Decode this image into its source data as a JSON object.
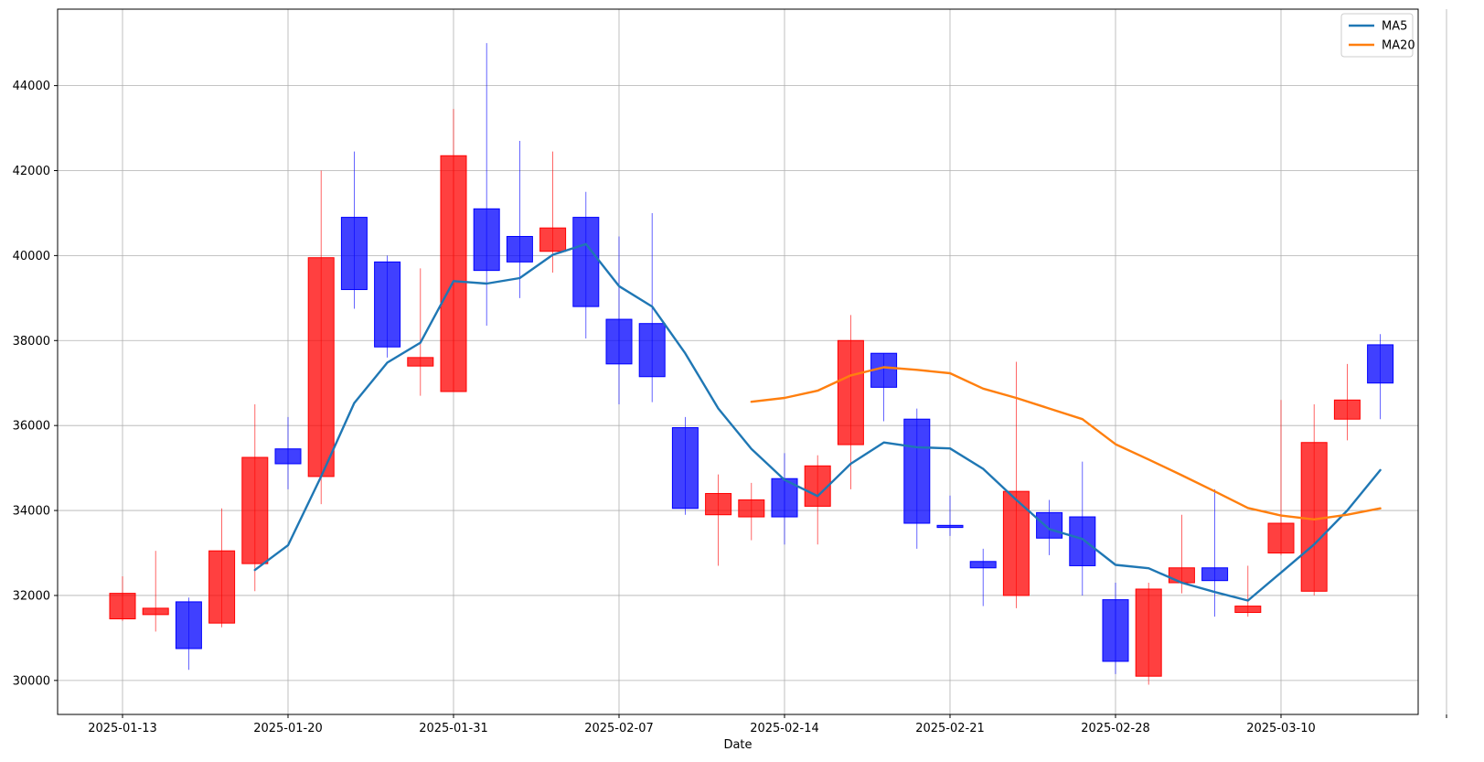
{
  "chart_data": {
    "type": "candlestick",
    "xlabel": "Date",
    "ylabel": "",
    "ylim": [
      29200,
      45800
    ],
    "y_ticks": [
      30000,
      32000,
      34000,
      36000,
      38000,
      40000,
      42000,
      44000
    ],
    "x_ticks": [
      {
        "label": "2025-01-13",
        "index": 0
      },
      {
        "label": "2025-01-20",
        "index": 5
      },
      {
        "label": "2025-01-31",
        "index": 10
      },
      {
        "label": "2025-02-07",
        "index": 15
      },
      {
        "label": "2025-02-14",
        "index": 20
      },
      {
        "label": "2025-02-21",
        "index": 25
      },
      {
        "label": "2025-02-28",
        "index": 30
      },
      {
        "label": "2025-03-10",
        "index": 35
      },
      {
        "label": "",
        "index": 40
      }
    ],
    "grid": true,
    "legend_position": "top-right",
    "colors": {
      "up": "#ff0000",
      "down": "#0000ff",
      "ma5": "#1f77b4",
      "ma20": "#ff7f0e"
    },
    "candles": [
      {
        "open": 31450,
        "close": 32050,
        "high": 32450,
        "low": 31400
      },
      {
        "open": 31550,
        "close": 31700,
        "high": 33050,
        "low": 31150
      },
      {
        "open": 31850,
        "close": 30750,
        "high": 31950,
        "low": 30250
      },
      {
        "open": 31350,
        "close": 33050,
        "high": 34050,
        "low": 31250
      },
      {
        "open": 32750,
        "close": 35250,
        "high": 36500,
        "low": 32100
      },
      {
        "open": 35450,
        "close": 35100,
        "high": 36200,
        "low": 34500
      },
      {
        "open": 34800,
        "close": 39950,
        "high": 42000,
        "low": 34150
      },
      {
        "open": 40900,
        "close": 39200,
        "high": 42450,
        "low": 38750
      },
      {
        "open": 39850,
        "close": 37850,
        "high": 40000,
        "low": 37600
      },
      {
        "open": 37400,
        "close": 37600,
        "high": 39700,
        "low": 36700
      },
      {
        "open": 36800,
        "close": 42350,
        "high": 43450,
        "low": 36800
      },
      {
        "open": 41100,
        "close": 39650,
        "high": 45000,
        "low": 38350
      },
      {
        "open": 40450,
        "close": 39850,
        "high": 42700,
        "low": 39000
      },
      {
        "open": 40100,
        "close": 40650,
        "high": 42450,
        "low": 39600
      },
      {
        "open": 40900,
        "close": 38800,
        "high": 41500,
        "low": 38050
      },
      {
        "open": 38500,
        "close": 37450,
        "high": 40450,
        "low": 36500
      },
      {
        "open": 38400,
        "close": 37150,
        "high": 41000,
        "low": 36550
      },
      {
        "open": 35950,
        "close": 34050,
        "high": 36200,
        "low": 33900
      },
      {
        "open": 33900,
        "close": 34400,
        "high": 34850,
        "low": 32700
      },
      {
        "open": 33850,
        "close": 34250,
        "high": 34650,
        "low": 33300
      },
      {
        "open": 34750,
        "close": 33850,
        "high": 35350,
        "low": 33200
      },
      {
        "open": 34100,
        "close": 35050,
        "high": 35300,
        "low": 33200
      },
      {
        "open": 35550,
        "close": 38000,
        "high": 38600,
        "low": 34500
      },
      {
        "open": 37700,
        "close": 36900,
        "high": 37700,
        "low": 36100
      },
      {
        "open": 36150,
        "close": 33700,
        "high": 36400,
        "low": 33100
      },
      {
        "open": 33650,
        "close": 33600,
        "high": 34350,
        "low": 33400
      },
      {
        "open": 32800,
        "close": 32650,
        "high": 33100,
        "low": 31750
      },
      {
        "open": 32000,
        "close": 34450,
        "high": 37500,
        "low": 31700
      },
      {
        "open": 33950,
        "close": 33350,
        "high": 34250,
        "low": 32950
      },
      {
        "open": 33850,
        "close": 32700,
        "high": 35150,
        "low": 32000
      },
      {
        "open": 31900,
        "close": 30450,
        "high": 32300,
        "low": 30150
      },
      {
        "open": 30100,
        "close": 32150,
        "high": 32300,
        "low": 29900
      },
      {
        "open": 32300,
        "close": 32650,
        "high": 33900,
        "low": 32050
      },
      {
        "open": 32650,
        "close": 32350,
        "high": 34500,
        "low": 31500
      },
      {
        "open": 31600,
        "close": 31750,
        "high": 32700,
        "low": 31500
      },
      {
        "open": 33000,
        "close": 33700,
        "high": 36600,
        "low": 32950
      },
      {
        "open": 32100,
        "close": 35600,
        "high": 36500,
        "low": 32000
      },
      {
        "open": 36150,
        "close": 36600,
        "high": 37450,
        "low": 35650
      },
      {
        "open": 37900,
        "close": 37000,
        "high": 38150,
        "low": 36150
      }
    ],
    "series": [
      {
        "name": "MA5",
        "color": "#1f77b4",
        "start_index": 4,
        "values": [
          32600,
          33180,
          34800,
          36530,
          37480,
          37950,
          39400,
          39340,
          39470,
          40020,
          40270,
          39280,
          38800,
          37700,
          36400,
          35450,
          34720,
          34340,
          35100,
          35600,
          35490,
          35460,
          34980,
          34250,
          33560,
          33330,
          32720,
          32640,
          32300,
          32080,
          31880,
          32540,
          33200,
          34000,
          34950
        ]
      },
      {
        "name": "MA20",
        "color": "#ff7f0e",
        "start_index": 19,
        "values": [
          36560,
          36650,
          36820,
          37180,
          37370,
          37310,
          37230,
          36870,
          36650,
          36400,
          36150,
          35560,
          35200,
          34830,
          34450,
          34060,
          33880,
          33790,
          33900,
          34050
        ]
      }
    ]
  }
}
